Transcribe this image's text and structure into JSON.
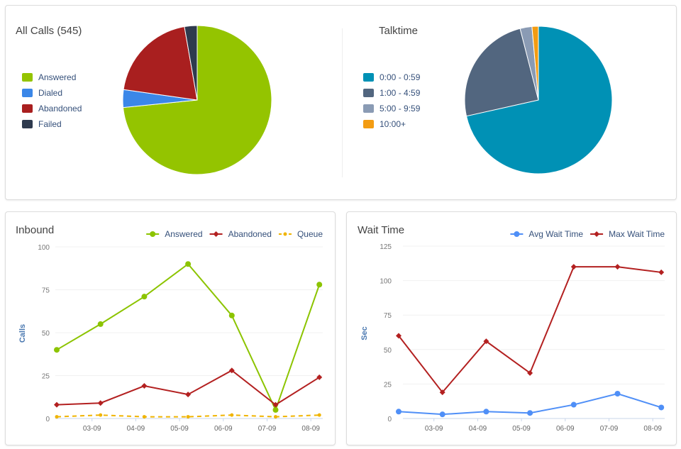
{
  "chart_data": [
    {
      "id": "all_calls",
      "type": "pie",
      "title": "All Calls (545)",
      "labels": [
        "Answered",
        "Dialed",
        "Abandoned",
        "Failed"
      ],
      "values": [
        400,
        21,
        109,
        15
      ],
      "colors": [
        "#94c400",
        "#3b87e8",
        "#a91f1f",
        "#2e3a4e"
      ]
    },
    {
      "id": "talktime",
      "type": "pie",
      "title": "Talktime",
      "labels": [
        "0:00 - 0:59",
        "1:00 - 4:59",
        "5:00 - 9:59",
        "10:00+"
      ],
      "values": [
        71.5,
        24.5,
        2.6,
        1.4
      ],
      "colors": [
        "#0091b5",
        "#52667f",
        "#8a9bb4",
        "#f39c12"
      ]
    },
    {
      "id": "inbound",
      "type": "line",
      "title": "Inbound",
      "ylabel": "Calls",
      "ylim": [
        0,
        100
      ],
      "yticks": [
        0,
        25,
        50,
        75,
        100
      ],
      "x": [
        "",
        "03-09",
        "04-09",
        "05-09",
        "06-09",
        "07-09",
        "08-09"
      ],
      "series": [
        {
          "name": "Answered",
          "color": "#8cc400",
          "marker": "circle",
          "values": [
            40,
            55,
            71,
            90,
            60,
            5,
            78
          ]
        },
        {
          "name": "Abandoned",
          "color": "#b32020",
          "marker": "diamond",
          "values": [
            8,
            9,
            19,
            14,
            28,
            8,
            24
          ]
        },
        {
          "name": "Queue",
          "color": "#f0b400",
          "marker": "circle",
          "dashed": true,
          "values": [
            1,
            2,
            1,
            1,
            2,
            1,
            2
          ]
        }
      ]
    },
    {
      "id": "wait",
      "type": "line",
      "title": "Wait Time",
      "ylabel": "Sec",
      "ylim": [
        0,
        125
      ],
      "yticks": [
        0,
        25,
        50,
        75,
        100,
        125
      ],
      "x": [
        "",
        "03-09",
        "04-09",
        "05-09",
        "06-09",
        "07-09",
        "08-09"
      ],
      "series": [
        {
          "name": "Avg Wait Time",
          "color": "#4f8ff7",
          "marker": "circle",
          "values": [
            5,
            3,
            5,
            4,
            10,
            18,
            8
          ]
        },
        {
          "name": "Max Wait Time",
          "color": "#b32020",
          "marker": "diamond",
          "values": [
            60,
            19,
            56,
            33,
            110,
            110,
            106
          ]
        }
      ]
    }
  ]
}
